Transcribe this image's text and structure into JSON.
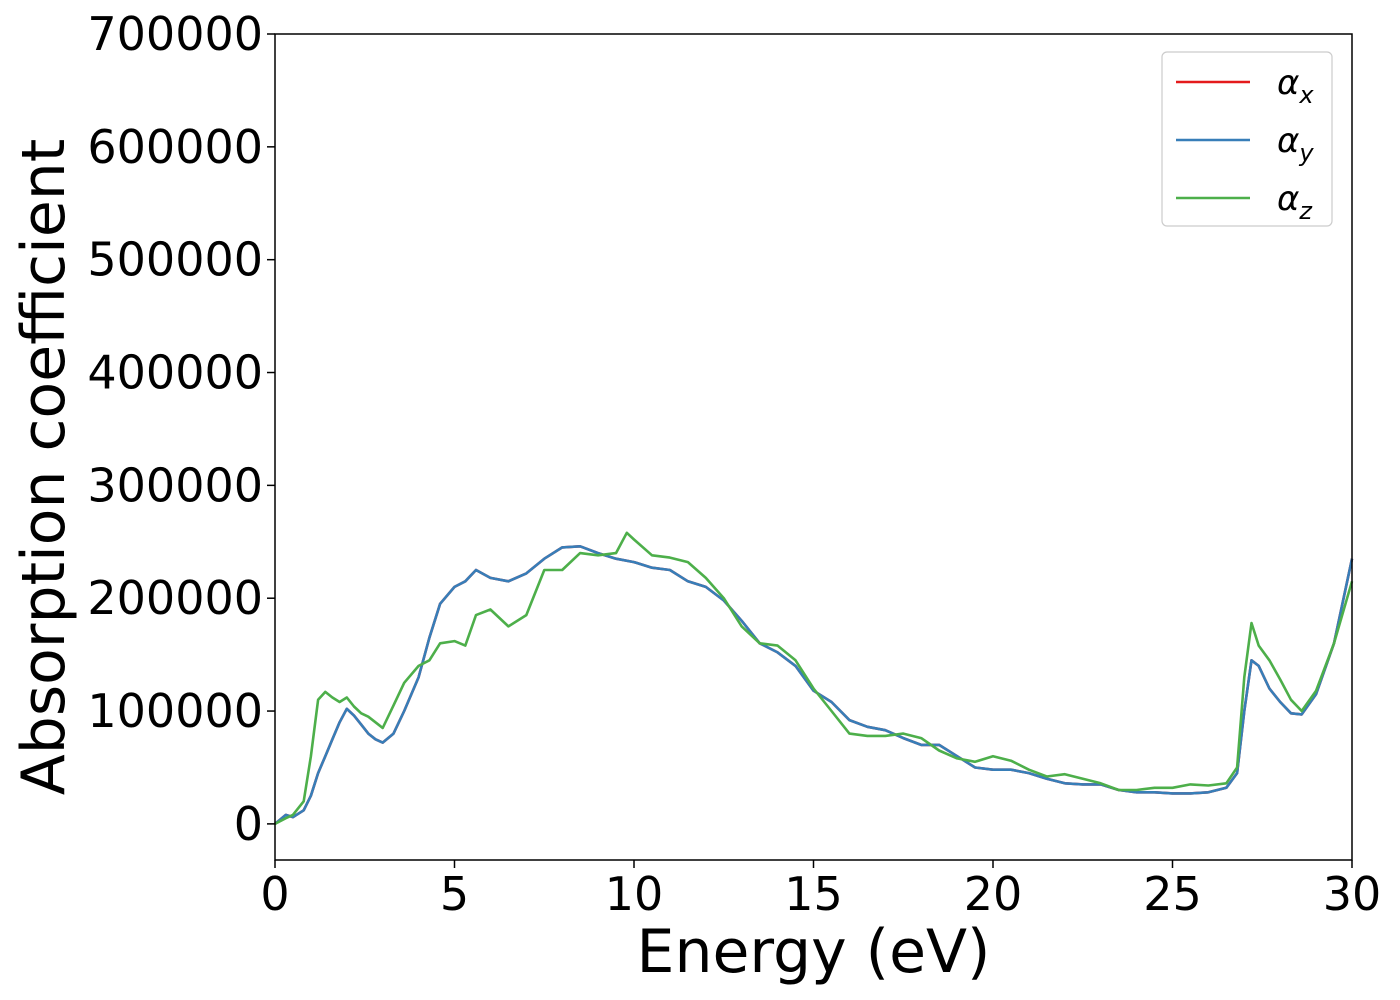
{
  "chart_data": {
    "type": "line",
    "title": "",
    "xlabel": "Energy (eV)",
    "ylabel": "Absorption coefficient",
    "xlim": [
      0,
      30
    ],
    "ylim": [
      -32000,
      700000
    ],
    "xticks": [
      "0",
      "5",
      "10",
      "15",
      "20",
      "25",
      "30"
    ],
    "yticks": [
      "0",
      "100000",
      "200000",
      "300000",
      "400000",
      "500000",
      "600000",
      "700000"
    ],
    "grid": false,
    "legend_position": "top-right",
    "series": [
      {
        "name": "αx",
        "legend_base": "α",
        "legend_sub": "x",
        "color": "#e41a1c",
        "x": [
          0,
          0.3,
          0.5,
          0.8,
          1.0,
          1.2,
          1.4,
          1.6,
          1.8,
          2.0,
          2.2,
          2.4,
          2.6,
          2.8,
          3.0,
          3.3,
          3.6,
          4.0,
          4.3,
          4.6,
          5.0,
          5.3,
          5.6,
          6.0,
          6.5,
          7.0,
          7.5,
          8.0,
          8.5,
          9.0,
          9.5,
          10.0,
          10.5,
          11.0,
          11.5,
          12.0,
          12.5,
          13.0,
          13.5,
          14.0,
          14.5,
          15.0,
          15.5,
          16.0,
          16.5,
          17.0,
          17.5,
          18.0,
          18.5,
          19.0,
          19.5,
          20.0,
          20.5,
          21.0,
          21.5,
          22.0,
          22.5,
          23.0,
          23.5,
          24.0,
          24.5,
          25.0,
          25.5,
          26.0,
          26.5,
          26.8,
          27.0,
          27.2,
          27.4,
          27.7,
          28.0,
          28.3,
          28.6,
          29.0,
          29.5,
          30.0
        ],
        "values": [
          0,
          8000,
          6000,
          12000,
          25000,
          45000,
          60000,
          75000,
          90000,
          102000,
          96000,
          88000,
          80000,
          75000,
          72000,
          80000,
          100000,
          130000,
          165000,
          195000,
          210000,
          215000,
          225000,
          218000,
          215000,
          222000,
          235000,
          245000,
          246000,
          240000,
          235000,
          232000,
          227000,
          225000,
          215000,
          210000,
          198000,
          180000,
          160000,
          152000,
          140000,
          118000,
          108000,
          92000,
          86000,
          83000,
          76000,
          70000,
          70000,
          60000,
          50000,
          48000,
          48000,
          45000,
          40000,
          36000,
          35000,
          35000,
          30000,
          28000,
          28000,
          27000,
          27000,
          28000,
          32000,
          45000,
          100000,
          145000,
          140000,
          120000,
          108000,
          98000,
          97000,
          115000,
          160000,
          235000
        ]
      },
      {
        "name": "αy",
        "legend_base": "α",
        "legend_sub": "y",
        "color": "#377eb8",
        "x": [
          0,
          0.3,
          0.5,
          0.8,
          1.0,
          1.2,
          1.4,
          1.6,
          1.8,
          2.0,
          2.2,
          2.4,
          2.6,
          2.8,
          3.0,
          3.3,
          3.6,
          4.0,
          4.3,
          4.6,
          5.0,
          5.3,
          5.6,
          6.0,
          6.5,
          7.0,
          7.5,
          8.0,
          8.5,
          9.0,
          9.5,
          10.0,
          10.5,
          11.0,
          11.5,
          12.0,
          12.5,
          13.0,
          13.5,
          14.0,
          14.5,
          15.0,
          15.5,
          16.0,
          16.5,
          17.0,
          17.5,
          18.0,
          18.5,
          19.0,
          19.5,
          20.0,
          20.5,
          21.0,
          21.5,
          22.0,
          22.5,
          23.0,
          23.5,
          24.0,
          24.5,
          25.0,
          25.5,
          26.0,
          26.5,
          26.8,
          27.0,
          27.2,
          27.4,
          27.7,
          28.0,
          28.3,
          28.6,
          29.0,
          29.5,
          30.0
        ],
        "values": [
          0,
          8000,
          6000,
          12000,
          25000,
          45000,
          60000,
          75000,
          90000,
          102000,
          96000,
          88000,
          80000,
          75000,
          72000,
          80000,
          100000,
          130000,
          165000,
          195000,
          210000,
          215000,
          225000,
          218000,
          215000,
          222000,
          235000,
          245000,
          246000,
          240000,
          235000,
          232000,
          227000,
          225000,
          215000,
          210000,
          198000,
          180000,
          160000,
          152000,
          140000,
          118000,
          108000,
          92000,
          86000,
          83000,
          76000,
          70000,
          70000,
          60000,
          50000,
          48000,
          48000,
          45000,
          40000,
          36000,
          35000,
          35000,
          30000,
          28000,
          28000,
          27000,
          27000,
          28000,
          32000,
          45000,
          100000,
          145000,
          140000,
          120000,
          108000,
          98000,
          97000,
          115000,
          160000,
          235000
        ]
      },
      {
        "name": "αz",
        "legend_base": "α",
        "legend_sub": "z",
        "color": "#4daf4a",
        "x": [
          0,
          0.3,
          0.5,
          0.8,
          1.0,
          1.2,
          1.4,
          1.6,
          1.8,
          2.0,
          2.2,
          2.4,
          2.6,
          2.8,
          3.0,
          3.3,
          3.6,
          4.0,
          4.3,
          4.6,
          5.0,
          5.3,
          5.6,
          6.0,
          6.5,
          7.0,
          7.5,
          8.0,
          8.5,
          9.0,
          9.5,
          9.8,
          10.0,
          10.5,
          11.0,
          11.5,
          12.0,
          12.5,
          13.0,
          13.5,
          14.0,
          14.5,
          15.0,
          15.5,
          16.0,
          16.5,
          17.0,
          17.5,
          18.0,
          18.5,
          19.0,
          19.5,
          20.0,
          20.5,
          21.0,
          21.5,
          22.0,
          22.5,
          23.0,
          23.5,
          24.0,
          24.5,
          25.0,
          25.5,
          26.0,
          26.5,
          26.8,
          27.0,
          27.2,
          27.4,
          27.7,
          28.0,
          28.3,
          28.6,
          29.0,
          29.5,
          30.0
        ],
        "values": [
          0,
          5000,
          8000,
          20000,
          60000,
          110000,
          117000,
          112000,
          108000,
          112000,
          104000,
          98000,
          95000,
          90000,
          85000,
          105000,
          125000,
          140000,
          145000,
          160000,
          162000,
          158000,
          185000,
          190000,
          175000,
          185000,
          225000,
          225000,
          240000,
          238000,
          240000,
          258000,
          252000,
          238000,
          236000,
          232000,
          218000,
          200000,
          175000,
          160000,
          158000,
          145000,
          120000,
          100000,
          80000,
          78000,
          78000,
          80000,
          76000,
          65000,
          58000,
          55000,
          60000,
          56000,
          48000,
          42000,
          44000,
          40000,
          36000,
          30000,
          30000,
          32000,
          32000,
          35000,
          34000,
          36000,
          50000,
          130000,
          178000,
          158000,
          145000,
          128000,
          110000,
          100000,
          118000,
          160000,
          215000
        ]
      }
    ]
  }
}
